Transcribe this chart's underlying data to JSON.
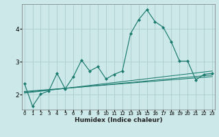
{
  "xlabel": "Humidex (Indice chaleur)",
  "bg_color": "#cce8e8",
  "grid_color": "#aacccc",
  "line_color": "#1a7a6e",
  "x_ticks": [
    0,
    1,
    2,
    3,
    4,
    5,
    6,
    7,
    8,
    9,
    10,
    11,
    12,
    13,
    14,
    15,
    16,
    17,
    18,
    19,
    20,
    21,
    22,
    23
  ],
  "y_ticks": [
    2,
    3,
    4
  ],
  "xlim": [
    -0.3,
    23.3
  ],
  "ylim": [
    1.55,
    4.75
  ],
  "main_series": {
    "x": [
      0,
      1,
      2,
      3,
      4,
      5,
      6,
      7,
      8,
      9,
      10,
      11,
      12,
      13,
      14,
      15,
      16,
      17,
      18,
      19,
      20,
      21,
      22,
      23
    ],
    "y": [
      2.35,
      1.65,
      2.02,
      2.12,
      2.65,
      2.18,
      2.55,
      3.05,
      2.72,
      2.85,
      2.48,
      2.62,
      2.72,
      3.85,
      4.28,
      4.58,
      4.22,
      4.05,
      3.6,
      3.02,
      3.02,
      2.45,
      2.62,
      2.65
    ]
  },
  "trend_lines": [
    {
      "x": [
        0,
        23
      ],
      "y": [
        2.08,
        2.6
      ]
    },
    {
      "x": [
        0,
        23
      ],
      "y": [
        2.05,
        2.72
      ]
    },
    {
      "x": [
        0,
        23
      ],
      "y": [
        2.1,
        2.55
      ]
    }
  ]
}
